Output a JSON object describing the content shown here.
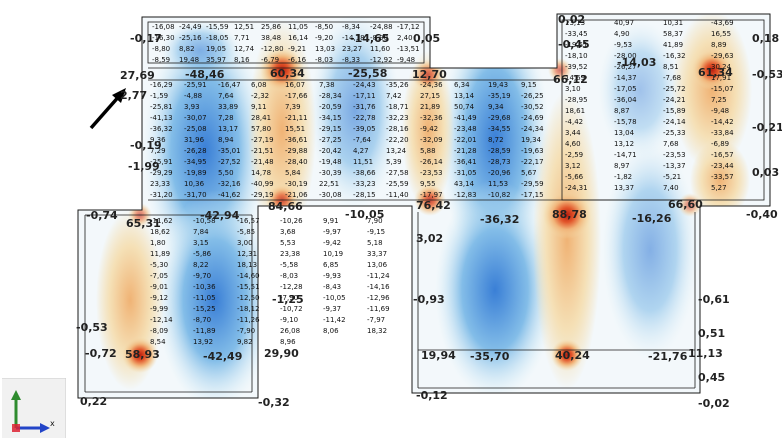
{
  "view": {
    "title": "",
    "pointer": "arrow"
  },
  "colors": {
    "low": "#3a7fd6",
    "mid": "#d6eef7",
    "neutral": "#f3f8fb",
    "warm": "#f3dcaa",
    "hot": "#e2552a",
    "peak": "#b81d0f",
    "outline": "#1a1a1a",
    "axis_y": "#2e8b2e",
    "axis_x": "#2345c8"
  },
  "axis_widget": {
    "icon": "coordinate-axes-icon",
    "x_label": "x"
  },
  "primary_values": [
    {
      "id": "v1",
      "text": "27,69"
    },
    {
      "id": "v2",
      "text": "2,77"
    },
    {
      "id": "v3",
      "text": "-48,46"
    },
    {
      "id": "v4",
      "text": "60,34"
    },
    {
      "id": "v5",
      "text": "-25,58"
    },
    {
      "id": "v6",
      "text": "12,70"
    },
    {
      "id": "v7",
      "text": "66,12"
    },
    {
      "id": "v8",
      "text": "61,34"
    },
    {
      "id": "v9",
      "text": "-14,65"
    },
    {
      "id": "v10",
      "text": "-14,03"
    },
    {
      "id": "v11",
      "text": "84,66"
    },
    {
      "id": "v12",
      "text": "-10,05"
    },
    {
      "id": "v13",
      "text": "76,42"
    },
    {
      "id": "v14",
      "text": "88,78"
    },
    {
      "id": "v15",
      "text": "66,60"
    },
    {
      "id": "v16",
      "text": "-0,74"
    },
    {
      "id": "v17",
      "text": "65,31"
    },
    {
      "id": "v18",
      "text": "-42,94"
    },
    {
      "id": "v19",
      "text": "-36,32"
    },
    {
      "id": "v20",
      "text": "-16,26"
    },
    {
      "id": "v21",
      "text": "-0,72"
    },
    {
      "id": "v22",
      "text": "58,93"
    },
    {
      "id": "v23",
      "text": "-42,49"
    },
    {
      "id": "v24",
      "text": "29,90"
    },
    {
      "id": "v25",
      "text": "19,94"
    },
    {
      "id": "v26",
      "text": "-35,70"
    },
    {
      "id": "v27",
      "text": "40,24"
    },
    {
      "id": "v28",
      "text": "-21,76"
    },
    {
      "id": "v29",
      "text": "11,13"
    },
    {
      "id": "v30",
      "text": "-0,17"
    },
    {
      "id": "v31",
      "text": "0,05"
    },
    {
      "id": "v32",
      "text": "0,02"
    },
    {
      "id": "v33",
      "text": "-0,45"
    },
    {
      "id": "v34",
      "text": "0,18"
    },
    {
      "id": "v35",
      "text": "-0,53"
    },
    {
      "id": "v36",
      "text": "-0,21"
    },
    {
      "id": "v37",
      "text": "-0,19"
    },
    {
      "id": "v38",
      "text": "-1,99"
    },
    {
      "id": "v39",
      "text": "0,03"
    },
    {
      "id": "v40",
      "text": "-0,40"
    },
    {
      "id": "v41",
      "text": "3,02"
    },
    {
      "id": "v42",
      "text": "-0,93"
    },
    {
      "id": "v43",
      "text": "-0,61"
    },
    {
      "id": "v44",
      "text": "0,51"
    },
    {
      "id": "v45",
      "text": "-1,25"
    },
    {
      "id": "v46",
      "text": "-0,53"
    },
    {
      "id": "v47",
      "text": "0,45"
    },
    {
      "id": "v48",
      "text": "-0,12"
    },
    {
      "id": "v49",
      "text": "-0,02"
    },
    {
      "id": "v50",
      "text": "0,22"
    },
    {
      "id": "v51",
      "text": "-0,32"
    }
  ],
  "secondary_values": [
    "-16,08",
    "-24,49",
    "-15,59",
    "12,51",
    "25,86",
    "11,05",
    "-8,50",
    "-8,34",
    "-24,88",
    "-17,12",
    "-16,30",
    "-25,16",
    "-18,05",
    "7,71",
    "38,48",
    "16,14",
    "-9,20",
    "-14,18",
    "-8,90",
    "2,40",
    "-8,80",
    "8,82",
    "19,05",
    "12,74",
    "-12,80",
    "-9,21",
    "13,03",
    "23,27",
    "11,60",
    "-13,51",
    "-8,59",
    "19,48",
    "35,97",
    "8,16",
    "-6,79",
    "-6,16",
    "-8,03",
    "-8,33",
    "-12,92",
    "-9,48",
    "13,13",
    "40,97",
    "10,31",
    "-43,69",
    "-33,45",
    "4,90",
    "58,37",
    "16,55",
    "-19,51",
    "-9,53",
    "41,89",
    "8,89",
    "-18,10",
    "-28,00",
    "-16,32",
    "-29,63",
    "-39,52",
    "-26,27",
    "8,51",
    "30,24",
    "14,69",
    "-14,37",
    "-7,68",
    "17,91",
    "3,10",
    "-17,05",
    "-25,72",
    "-15,07",
    "-28,95",
    "-36,04",
    "-24,21",
    "7,25",
    "18,61",
    "8,87",
    "-15,89",
    "-9,48",
    "-4,42",
    "-15,78",
    "-24,14",
    "-14,42",
    "3,44",
    "13,04",
    "-25,33",
    "-33,84",
    "4,60",
    "13,12",
    "7,68",
    "-6,89",
    "-2,59",
    "-14,71",
    "-23,53",
    "-16,57",
    "3,12",
    "8,97",
    "-13,37",
    "-23,44",
    "-5,66",
    "-1,82",
    "-5,21",
    "-33,57",
    "-24,31",
    "13,37",
    "7,40",
    "5,27",
    "-16,29",
    "-25,91",
    "-16,47",
    "6,08",
    "16,07",
    "7,38",
    "-24,43",
    "-35,26",
    "-24,36",
    "6,34",
    "19,43",
    "9,15",
    "-1,59",
    "-4,88",
    "7,64",
    "-2,32",
    "-17,66",
    "-28,34",
    "-17,11",
    "7,42",
    "27,15",
    "13,14",
    "-35,19",
    "-26,25",
    "-25,81",
    "3,93",
    "33,89",
    "9,11",
    "7,39",
    "-20,59",
    "-31,76",
    "-18,71",
    "21,89",
    "50,74",
    "9,34",
    "-30,52",
    "-41,13",
    "-30,07",
    "7,28",
    "28,41",
    "-21,11",
    "-34,15",
    "-22,78",
    "-32,23",
    "-32,36",
    "-41,49",
    "-29,68",
    "-24,69",
    "-36,32",
    "-25,08",
    "13,17",
    "57,80",
    "15,51",
    "-29,15",
    "-39,05",
    "-28,16",
    "-9,42",
    "-23,48",
    "-34,55",
    "-24,34",
    "9,36",
    "31,96",
    "8,94",
    "-27,19",
    "-36,61",
    "-27,25",
    "-7,64",
    "-22,20",
    "-32,09",
    "-22,01",
    "8,72",
    "19,34",
    "7,29",
    "-26,28",
    "-35,01",
    "-21,51",
    "-29,88",
    "-20,42",
    "4,27",
    "13,24",
    "5,88",
    "-21,28",
    "-28,59",
    "-19,63",
    "-25,91",
    "-34,95",
    "-27,52",
    "-21,48",
    "-28,40",
    "-19,48",
    "11,51",
    "5,39",
    "-26,14",
    "-36,41",
    "-28,73",
    "-22,17",
    "-29,29",
    "-19,89",
    "5,50",
    "14,78",
    "5,84",
    "-30,39",
    "-38,66",
    "-27,58",
    "-23,53",
    "-31,05",
    "-20,96",
    "5,67",
    "23,33",
    "10,36",
    "-32,16",
    "-40,99",
    "-30,19",
    "22,51",
    "-33,23",
    "-25,59",
    "9,55",
    "43,14",
    "11,53",
    "-29,59",
    "-31,20",
    "-31,70",
    "-41,62",
    "-29,19",
    "-21,06",
    "-30,08",
    "-28,15",
    "-11,40",
    "-17,97",
    "-12,83",
    "-10,82",
    "-17,15",
    "-11,62",
    "-10,58",
    "-16,57",
    "-10,26",
    "9,91",
    "7,90",
    "18,62",
    "7,84",
    "-5,85",
    "3,68",
    "-9,97",
    "-9,15",
    "1,80",
    "3,15",
    "3,00",
    "5,53",
    "-9,42",
    "5,18",
    "11,89",
    "-5,86",
    "12,31",
    "23,38",
    "10,19",
    "33,37",
    "-5,30",
    "8,22",
    "18,13",
    "-5,58",
    "6,85",
    "13,06",
    "-7,05",
    "-9,70",
    "-14,60",
    "-8,03",
    "-9,93",
    "-11,24",
    "-9,01",
    "-10,36",
    "-15,51",
    "-12,28",
    "-8,43",
    "-14,16",
    "-9,12",
    "-11,05",
    "-12,50",
    "-7,90",
    "-10,05",
    "-12,96",
    "-9,99",
    "-15,25",
    "-18,12",
    "-10,72",
    "-9,37",
    "-11,69",
    "-12,14",
    "-8,70",
    "-11,26",
    "-9,10",
    "-11,42",
    "-7,97",
    "-8,09",
    "-11,89",
    "-7,90",
    "26,08",
    "8,06",
    "18,32",
    "8,54",
    "13,92",
    "9,82",
    "8,96"
  ]
}
